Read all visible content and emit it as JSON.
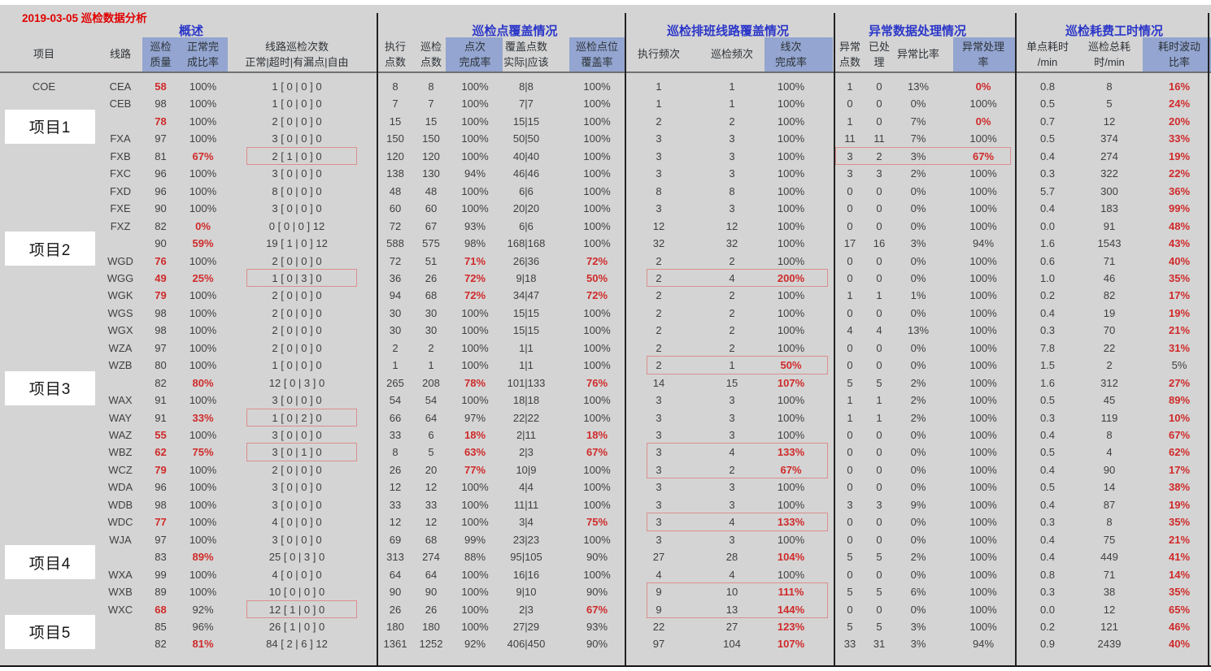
{
  "title": "2019-03-05 巡检数据分析",
  "groups": [
    {
      "label": "概述"
    },
    {
      "label": "巡检点覆盖情况"
    },
    {
      "label": "巡检排班线路覆盖情况"
    },
    {
      "label": "异常数据处理情况"
    },
    {
      "label": "巡检耗费工时情况"
    }
  ],
  "columns": [
    {
      "key": "project",
      "l1": "项目",
      "l2": "",
      "highlight": false
    },
    {
      "key": "line",
      "l1": "线路",
      "l2": "",
      "highlight": false
    },
    {
      "key": "quality",
      "l1": "巡检",
      "l2": "质量",
      "highlight": true
    },
    {
      "key": "normal-rate",
      "l1": "正常完",
      "l2": "成比率",
      "highlight": true
    },
    {
      "key": "route-counts",
      "l1": "线路巡检次数",
      "l2": "正常|超时|有漏点|自由",
      "highlight": false
    },
    {
      "key": "exec-points",
      "l1": "执行",
      "l2": "点数",
      "highlight": false
    },
    {
      "key": "insp-points",
      "l1": "巡检",
      "l2": "点数",
      "highlight": false
    },
    {
      "key": "point-rate",
      "l1": "点次",
      "l2": "完成率",
      "highlight": true
    },
    {
      "key": "coverage",
      "l1": "覆盖点数",
      "l2": "实际|应该",
      "highlight": false
    },
    {
      "key": "coverage-rate",
      "l1": "巡检点位",
      "l2": "覆盖率",
      "highlight": true
    },
    {
      "key": "exec-freq",
      "l1": "执行频次",
      "l2": "",
      "highlight": false
    },
    {
      "key": "insp-freq",
      "l1": "巡检频次",
      "l2": "",
      "highlight": false
    },
    {
      "key": "line-rate",
      "l1": "线次",
      "l2": "完成率",
      "highlight": true
    },
    {
      "key": "abnormal-points",
      "l1": "异常",
      "l2": "点数",
      "highlight": false
    },
    {
      "key": "processed",
      "l1": "已处",
      "l2": "理",
      "highlight": false
    },
    {
      "key": "abnormal-ratio",
      "l1": "异常比率",
      "l2": "",
      "highlight": false
    },
    {
      "key": "abnormal-rate",
      "l1": "异常处理",
      "l2": "率",
      "highlight": true
    },
    {
      "key": "per-point-time",
      "l1": "单点耗时",
      "l2": "/min",
      "highlight": false
    },
    {
      "key": "total-time",
      "l1": "巡检总耗",
      "l2": "时/min",
      "highlight": false
    },
    {
      "key": "fluctuation",
      "l1": "耗时波动",
      "l2": "比率",
      "highlight": true
    }
  ],
  "rows": [
    {
      "cells": [
        "COE",
        "CEA",
        "58",
        "100%",
        "1 [ 0 | 0 ] 0",
        "8",
        "8",
        "100%",
        "8|8",
        "100%",
        "1",
        "1",
        "100%",
        "1",
        "0",
        "13%",
        "0%",
        "0.8",
        "8",
        "16%"
      ],
      "red": [
        2,
        16,
        19
      ]
    },
    {
      "cells": [
        "",
        "CEB",
        "98",
        "100%",
        "1 [ 0 | 0 ] 0",
        "7",
        "7",
        "100%",
        "7|7",
        "100%",
        "1",
        "1",
        "100%",
        "0",
        "0",
        "0%",
        "100%",
        "0.5",
        "5",
        "24%"
      ],
      "red": [
        19
      ]
    },
    {
      "cells": [
        "",
        "",
        "78",
        "100%",
        "2 [ 0 | 0 ] 0",
        "15",
        "15",
        "100%",
        "15|15",
        "100%",
        "2",
        "2",
        "100%",
        "1",
        "0",
        "7%",
        "0%",
        "0.7",
        "12",
        "20%"
      ],
      "red": [
        2,
        16,
        19
      ]
    },
    {
      "cells": [
        "",
        "FXA",
        "97",
        "100%",
        "3 [ 0 | 0 ] 0",
        "150",
        "150",
        "100%",
        "50|50",
        "100%",
        "3",
        "3",
        "100%",
        "11",
        "11",
        "7%",
        "100%",
        "0.5",
        "374",
        "33%"
      ],
      "red": [
        19
      ]
    },
    {
      "cells": [
        "",
        "FXB",
        "81",
        "67%",
        "2 [ 1 | 0 ] 0",
        "120",
        "120",
        "100%",
        "40|40",
        "100%",
        "3",
        "3",
        "100%",
        "3",
        "2",
        "3%",
        "67%",
        "0.4",
        "274",
        "19%"
      ],
      "red": [
        3,
        16,
        19
      ]
    },
    {
      "cells": [
        "",
        "FXC",
        "96",
        "100%",
        "3 [ 0 | 0 ] 0",
        "138",
        "130",
        "94%",
        "46|46",
        "100%",
        "3",
        "3",
        "100%",
        "3",
        "3",
        "2%",
        "100%",
        "0.3",
        "322",
        "22%"
      ],
      "red": [
        19
      ]
    },
    {
      "cells": [
        "",
        "FXD",
        "96",
        "100%",
        "8 [ 0 | 0 ] 0",
        "48",
        "48",
        "100%",
        "6|6",
        "100%",
        "8",
        "8",
        "100%",
        "0",
        "0",
        "0%",
        "100%",
        "5.7",
        "300",
        "36%"
      ],
      "red": [
        19
      ]
    },
    {
      "cells": [
        "",
        "FXE",
        "90",
        "100%",
        "3 [ 0 | 0 ] 0",
        "60",
        "60",
        "100%",
        "20|20",
        "100%",
        "3",
        "3",
        "100%",
        "0",
        "0",
        "0%",
        "100%",
        "0.4",
        "183",
        "99%"
      ],
      "red": [
        19
      ]
    },
    {
      "cells": [
        "",
        "FXZ",
        "82",
        "0%",
        "0 [ 0 | 0 ] 12",
        "72",
        "67",
        "93%",
        "6|6",
        "100%",
        "12",
        "12",
        "100%",
        "0",
        "0",
        "0%",
        "100%",
        "0.0",
        "91",
        "48%"
      ],
      "red": [
        3,
        19
      ]
    },
    {
      "cells": [
        "",
        "",
        "90",
        "59%",
        "19 [ 1 | 0 ] 12",
        "588",
        "575",
        "98%",
        "168|168",
        "100%",
        "32",
        "32",
        "100%",
        "17",
        "16",
        "3%",
        "94%",
        "1.6",
        "1543",
        "43%"
      ],
      "red": [
        3,
        19
      ]
    },
    {
      "cells": [
        "",
        "WGD",
        "76",
        "100%",
        "2 [ 0 | 0 ] 0",
        "72",
        "51",
        "71%",
        "26|36",
        "72%",
        "2",
        "2",
        "100%",
        "0",
        "0",
        "0%",
        "100%",
        "0.6",
        "71",
        "40%"
      ],
      "red": [
        2,
        7,
        9,
        19
      ]
    },
    {
      "cells": [
        "",
        "WGG",
        "49",
        "25%",
        "1 [ 0 | 3 ] 0",
        "36",
        "26",
        "72%",
        "9|18",
        "50%",
        "2",
        "4",
        "200%",
        "0",
        "0",
        "0%",
        "100%",
        "1.0",
        "46",
        "35%"
      ],
      "red": [
        2,
        3,
        7,
        9,
        12,
        19
      ]
    },
    {
      "cells": [
        "",
        "WGK",
        "79",
        "100%",
        "2 [ 0 | 0 ] 0",
        "94",
        "68",
        "72%",
        "34|47",
        "72%",
        "2",
        "2",
        "100%",
        "1",
        "1",
        "1%",
        "100%",
        "0.2",
        "82",
        "17%"
      ],
      "red": [
        2,
        7,
        9,
        19
      ]
    },
    {
      "cells": [
        "",
        "WGS",
        "98",
        "100%",
        "2 [ 0 | 0 ] 0",
        "30",
        "30",
        "100%",
        "15|15",
        "100%",
        "2",
        "2",
        "100%",
        "0",
        "0",
        "0%",
        "100%",
        "0.4",
        "19",
        "19%"
      ],
      "red": [
        19
      ]
    },
    {
      "cells": [
        "",
        "WGX",
        "98",
        "100%",
        "2 [ 0 | 0 ] 0",
        "30",
        "30",
        "100%",
        "15|15",
        "100%",
        "2",
        "2",
        "100%",
        "4",
        "4",
        "13%",
        "100%",
        "0.3",
        "70",
        "21%"
      ],
      "red": [
        19
      ]
    },
    {
      "cells": [
        "",
        "WZA",
        "97",
        "100%",
        "2 [ 0 | 0 ] 0",
        "2",
        "2",
        "100%",
        "1|1",
        "100%",
        "2",
        "2",
        "100%",
        "0",
        "0",
        "0%",
        "100%",
        "7.8",
        "22",
        "31%"
      ],
      "red": [
        19
      ]
    },
    {
      "cells": [
        "",
        "WZB",
        "80",
        "100%",
        "1 [ 0 | 0 ] 0",
        "1",
        "1",
        "100%",
        "1|1",
        "100%",
        "2",
        "1",
        "50%",
        "0",
        "0",
        "0%",
        "100%",
        "1.5",
        "2",
        "5%"
      ],
      "red": [
        12
      ]
    },
    {
      "cells": [
        "",
        "",
        "82",
        "80%",
        "12 [ 0 | 3 ] 0",
        "265",
        "208",
        "78%",
        "101|133",
        "76%",
        "14",
        "15",
        "107%",
        "5",
        "5",
        "2%",
        "100%",
        "1.6",
        "312",
        "27%"
      ],
      "red": [
        3,
        7,
        9,
        12,
        19
      ]
    },
    {
      "cells": [
        "",
        "WAX",
        "91",
        "100%",
        "3 [ 0 | 0 ] 0",
        "54",
        "54",
        "100%",
        "18|18",
        "100%",
        "3",
        "3",
        "100%",
        "1",
        "1",
        "2%",
        "100%",
        "0.5",
        "45",
        "89%"
      ],
      "red": [
        19
      ]
    },
    {
      "cells": [
        "",
        "WAY",
        "91",
        "33%",
        "1 [ 0 | 2 ] 0",
        "66",
        "64",
        "97%",
        "22|22",
        "100%",
        "3",
        "3",
        "100%",
        "1",
        "1",
        "2%",
        "100%",
        "0.3",
        "119",
        "10%"
      ],
      "red": [
        3,
        19
      ]
    },
    {
      "cells": [
        "",
        "WAZ",
        "55",
        "100%",
        "3 [ 0 | 0 ] 0",
        "33",
        "6",
        "18%",
        "2|11",
        "18%",
        "3",
        "3",
        "100%",
        "0",
        "0",
        "0%",
        "100%",
        "0.4",
        "8",
        "67%"
      ],
      "red": [
        2,
        7,
        9,
        19
      ]
    },
    {
      "cells": [
        "",
        "WBZ",
        "62",
        "75%",
        "3 [ 0 | 1 ] 0",
        "8",
        "5",
        "63%",
        "2|3",
        "67%",
        "3",
        "4",
        "133%",
        "0",
        "0",
        "0%",
        "100%",
        "0.5",
        "4",
        "62%"
      ],
      "red": [
        2,
        3,
        7,
        9,
        12,
        19
      ]
    },
    {
      "cells": [
        "",
        "WCZ",
        "79",
        "100%",
        "2 [ 0 | 0 ] 0",
        "26",
        "20",
        "77%",
        "10|9",
        "100%",
        "3",
        "2",
        "67%",
        "0",
        "0",
        "0%",
        "100%",
        "0.4",
        "90",
        "17%"
      ],
      "red": [
        2,
        7,
        12,
        19
      ]
    },
    {
      "cells": [
        "",
        "WDA",
        "96",
        "100%",
        "3 [ 0 | 0 ] 0",
        "12",
        "12",
        "100%",
        "4|4",
        "100%",
        "3",
        "3",
        "100%",
        "0",
        "0",
        "0%",
        "100%",
        "0.5",
        "14",
        "38%"
      ],
      "red": [
        19
      ]
    },
    {
      "cells": [
        "",
        "WDB",
        "98",
        "100%",
        "3 [ 0 | 0 ] 0",
        "33",
        "33",
        "100%",
        "11|11",
        "100%",
        "3",
        "3",
        "100%",
        "3",
        "3",
        "9%",
        "100%",
        "0.4",
        "87",
        "19%"
      ],
      "red": [
        19
      ]
    },
    {
      "cells": [
        "",
        "WDC",
        "77",
        "100%",
        "4 [ 0 | 0 ] 0",
        "12",
        "12",
        "100%",
        "3|4",
        "75%",
        "3",
        "4",
        "133%",
        "0",
        "0",
        "0%",
        "100%",
        "0.3",
        "8",
        "35%"
      ],
      "red": [
        2,
        9,
        12,
        19
      ]
    },
    {
      "cells": [
        "",
        "WJA",
        "97",
        "100%",
        "3 [ 0 | 0 ] 0",
        "69",
        "68",
        "99%",
        "23|23",
        "100%",
        "3",
        "3",
        "100%",
        "0",
        "0",
        "0%",
        "100%",
        "0.4",
        "75",
        "21%"
      ],
      "red": [
        19
      ]
    },
    {
      "cells": [
        "",
        "",
        "83",
        "89%",
        "25 [ 0 | 3 ] 0",
        "313",
        "274",
        "88%",
        "95|105",
        "90%",
        "27",
        "28",
        "104%",
        "5",
        "5",
        "2%",
        "100%",
        "0.4",
        "449",
        "41%"
      ],
      "red": [
        3,
        12,
        19
      ]
    },
    {
      "cells": [
        "",
        "WXA",
        "99",
        "100%",
        "4 [ 0 | 0 ] 0",
        "64",
        "64",
        "100%",
        "16|16",
        "100%",
        "4",
        "4",
        "100%",
        "0",
        "0",
        "0%",
        "100%",
        "0.8",
        "71",
        "14%"
      ],
      "red": [
        19
      ]
    },
    {
      "cells": [
        "",
        "WXB",
        "89",
        "100%",
        "10 [ 0 | 0 ] 0",
        "90",
        "90",
        "100%",
        "9|10",
        "90%",
        "9",
        "10",
        "111%",
        "5",
        "5",
        "6%",
        "100%",
        "0.3",
        "38",
        "35%"
      ],
      "red": [
        12,
        19
      ]
    },
    {
      "cells": [
        "",
        "WXC",
        "68",
        "92%",
        "12 [ 1 | 0 ] 0",
        "26",
        "26",
        "100%",
        "2|3",
        "67%",
        "9",
        "13",
        "144%",
        "0",
        "0",
        "0%",
        "100%",
        "0.0",
        "12",
        "65%"
      ],
      "red": [
        2,
        9,
        12,
        19
      ]
    },
    {
      "cells": [
        "",
        "",
        "85",
        "96%",
        "26 [ 1 | 0 ] 0",
        "180",
        "180",
        "100%",
        "27|29",
        "93%",
        "22",
        "27",
        "123%",
        "5",
        "5",
        "3%",
        "100%",
        "0.2",
        "121",
        "46%"
      ],
      "red": [
        12,
        19
      ]
    },
    {
      "cells": [
        "",
        "",
        "82",
        "81%",
        "84 [ 2 | 6 ] 12",
        "1361",
        "1252",
        "92%",
        "406|450",
        "90%",
        "97",
        "104",
        "107%",
        "33",
        "31",
        "3%",
        "94%",
        "0.9",
        "2439",
        "40%"
      ],
      "red": [
        3,
        12,
        19
      ]
    }
  ],
  "project_overlays": [
    {
      "label": "项目1",
      "row": 2
    },
    {
      "label": "项目2",
      "row": 9
    },
    {
      "label": "项目3",
      "row": 17
    },
    {
      "label": "项目4",
      "row": 27
    },
    {
      "label": "项目5",
      "row": 31
    }
  ],
  "highlight_boxes": [
    {
      "rows": [
        4
      ],
      "area": "route-counts"
    },
    {
      "rows": [
        4
      ],
      "area": "abnormal"
    },
    {
      "rows": [
        11
      ],
      "area": "route-counts"
    },
    {
      "rows": [
        11
      ],
      "area": "schedule"
    },
    {
      "rows": [
        16
      ],
      "area": "schedule"
    },
    {
      "rows": [
        19
      ],
      "area": "route-counts"
    },
    {
      "rows": [
        21
      ],
      "area": "route-counts"
    },
    {
      "rows": [
        21,
        22
      ],
      "area": "schedule"
    },
    {
      "rows": [
        25
      ],
      "area": "schedule"
    },
    {
      "rows": [
        29,
        30
      ],
      "area": "schedule"
    },
    {
      "rows": [
        30
      ],
      "area": "route-counts"
    }
  ],
  "colors": {
    "accent_red": "#d02a2a",
    "title_red": "#e00000",
    "header_blue_bg": "#93a5d0",
    "group_title_blue": "#2b36c8",
    "table_bg": "#d4d4d4",
    "box_red": "#dc8f8f"
  }
}
